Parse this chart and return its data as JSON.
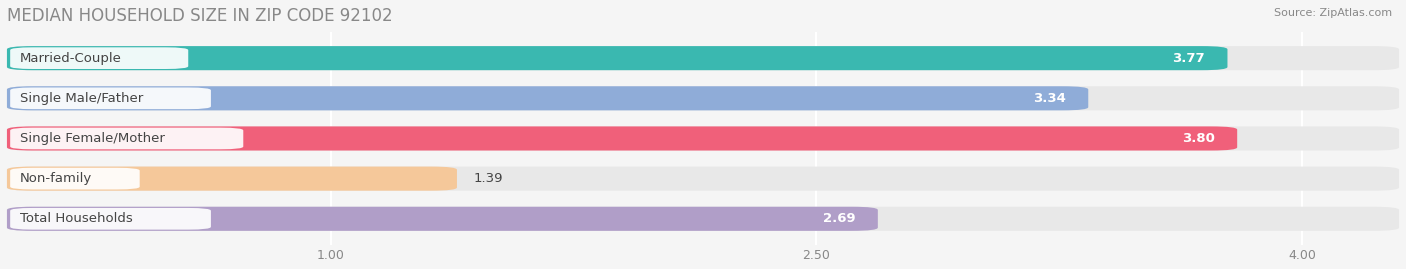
{
  "title": "MEDIAN HOUSEHOLD SIZE IN ZIP CODE 92102",
  "source": "Source: ZipAtlas.com",
  "categories": [
    "Married-Couple",
    "Single Male/Father",
    "Single Female/Mother",
    "Non-family",
    "Total Households"
  ],
  "values": [
    3.77,
    3.34,
    3.8,
    1.39,
    2.69
  ],
  "bar_colors": [
    "#3ab8b0",
    "#8facd8",
    "#f0607a",
    "#f5c89a",
    "#b09ec8"
  ],
  "xlim_data": [
    0,
    4.3
  ],
  "xaxis_min": 0,
  "xaxis_max": 4.3,
  "xticks": [
    1.0,
    2.5,
    4.0
  ],
  "xtick_labels": [
    "1.00",
    "2.50",
    "4.00"
  ],
  "background_color": "#f5f5f5",
  "bar_background_color": "#e8e8e8",
  "title_fontsize": 12,
  "label_fontsize": 9.5,
  "value_fontsize": 9.5,
  "bar_height": 0.6,
  "label_text_color": "#444444",
  "value_text_color": "#444444",
  "grid_color": "#ffffff",
  "title_color": "#888888"
}
